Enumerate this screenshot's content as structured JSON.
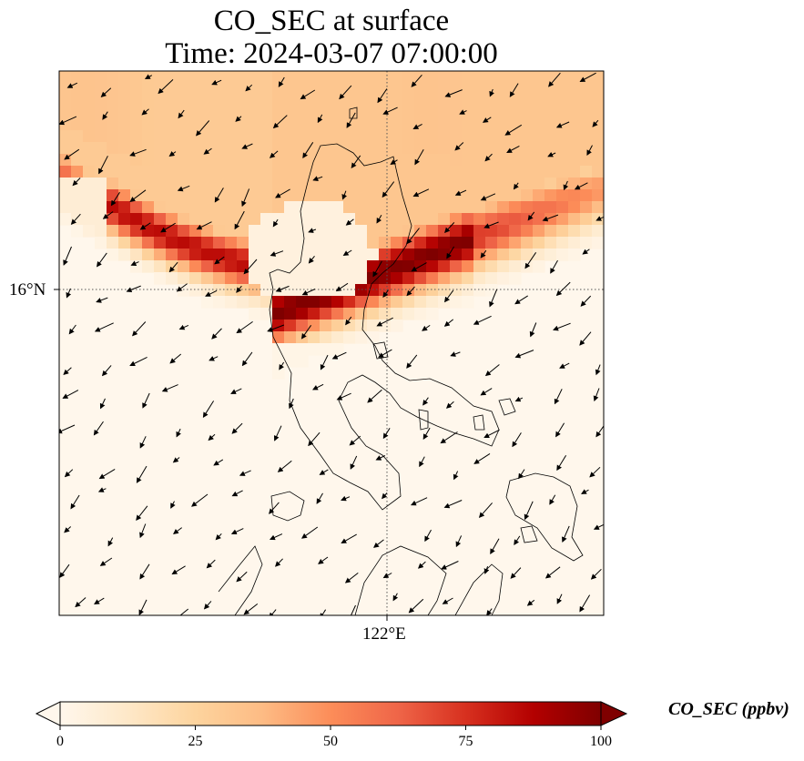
{
  "title": {
    "line1": "CO_SEC at surface",
    "line2": "Time: 2024-03-07 07:00:00"
  },
  "map": {
    "projection": "PlateCarree",
    "latitude_gridline_label": "16°N",
    "longitude_gridline_label": "122°E",
    "gridline_style": "dotted",
    "overlay": "wind vectors",
    "coastline_color": "#000000",
    "field_description": "CO_SEC plume over northern Luzon, max near 16°N 122°E"
  },
  "colorbar": {
    "label": "CO_SEC (ppbv)",
    "colormap": "OrRd",
    "min": 0,
    "max": 100,
    "ticks": [
      "0",
      "25",
      "50",
      "75",
      "100"
    ],
    "extend": "both",
    "colors": [
      "#fff7ec",
      "#fee8c8",
      "#fdd49e",
      "#fdbb84",
      "#fc8d59",
      "#ef6548",
      "#d7301f",
      "#b30000",
      "#7f0000"
    ]
  }
}
